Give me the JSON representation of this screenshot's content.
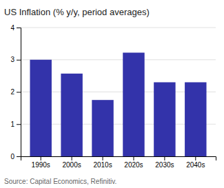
{
  "chart_data": {
    "type": "bar",
    "title": "US Inflation (% y/y, period averages)",
    "categories": [
      "1990s",
      "2000s",
      "2010s",
      "2020s",
      "2030s",
      "2040s"
    ],
    "values": [
      3.0,
      2.57,
      1.75,
      3.22,
      2.3,
      2.3
    ],
    "color": "#3333aa",
    "ylim": [
      0,
      4
    ],
    "yticks": [
      0,
      1,
      2,
      3,
      4
    ],
    "grid": true,
    "annotations": [
      "Source: Capital Economics, Refinitiv."
    ]
  }
}
